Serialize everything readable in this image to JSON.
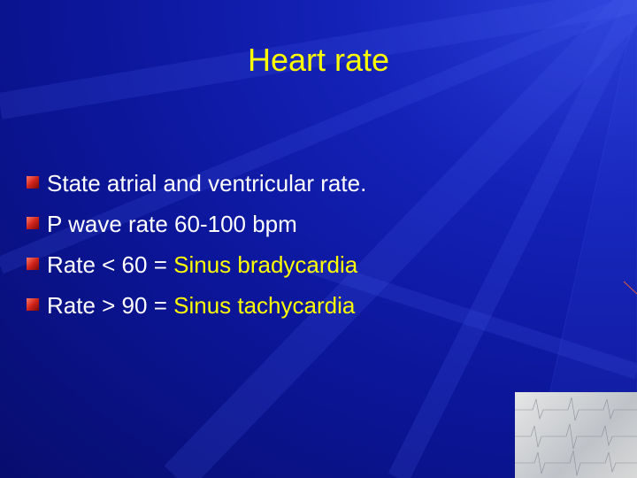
{
  "title": "Heart rate",
  "title_color": "#ffff00",
  "bullets": [
    {
      "parts": [
        {
          "text": "State atrial and ventricular rate.",
          "color": "#ffffff"
        }
      ]
    },
    {
      "parts": [
        {
          "text": "P wave rate 60-100 bpm",
          "color": "#ffffff"
        }
      ]
    },
    {
      "parts": [
        {
          "text": "Rate < 60 = ",
          "color": "#ffffff"
        },
        {
          "text": "Sinus bradycardia",
          "color": "#ffff00"
        }
      ]
    },
    {
      "parts": [
        {
          "text": "Rate > 90 = ",
          "color": "#ffffff"
        },
        {
          "text": "Sinus tachycardia",
          "color": "#ffff00"
        }
      ]
    }
  ]
}
